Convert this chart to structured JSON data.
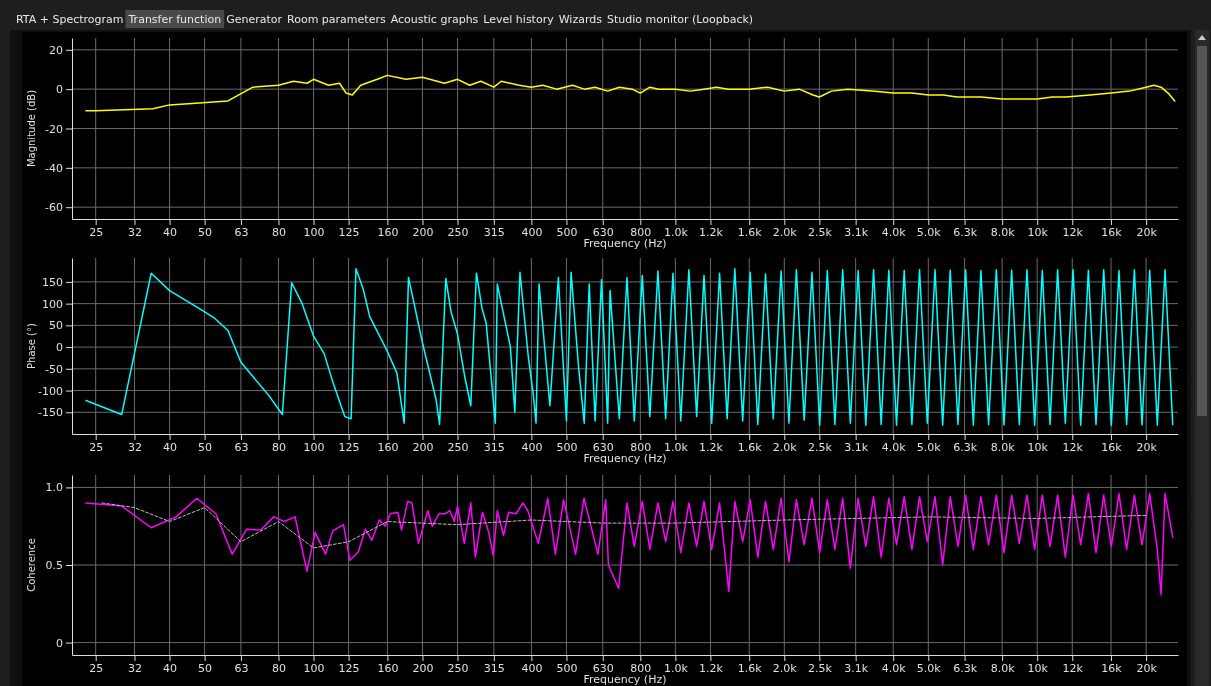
{
  "chart_data": [
    {
      "type": "line",
      "xlabel": "Frequency (Hz)",
      "ylabel": "Magnitude (dB)",
      "log": "x",
      "grid": true,
      "annotations": [
        "RTA + Spectrogram",
        "Transfer function",
        "Generator",
        "Room parameters",
        "Acoustic graphs",
        "Level history",
        "Wizards",
        "Studio monitor (Loopback)"
      ],
      "xlim": [
        21.5,
        24500
      ],
      "ylim": [
        -66,
        26
      ],
      "xticks": [
        25,
        32,
        40,
        50,
        63,
        80,
        100,
        125,
        160,
        200,
        250,
        315,
        400,
        500,
        630,
        800,
        {
          "value": 1000,
          "label": "1.0k"
        },
        {
          "value": 1250,
          "label": "1.2k"
        },
        {
          "value": 1600,
          "label": "1.6k"
        },
        {
          "value": 2000,
          "label": "2.0k"
        },
        {
          "value": 2500,
          "label": "2.5k"
        },
        {
          "value": 3150,
          "label": "3.1k"
        },
        {
          "value": 4000,
          "label": "4.0k"
        },
        {
          "value": 5000,
          "label": "5.0k"
        },
        {
          "value": 6300,
          "label": "6.3k"
        },
        {
          "value": 8000,
          "label": "8.0k"
        },
        {
          "value": 10000,
          "label": "10k"
        },
        {
          "value": 12500,
          "label": "12k"
        },
        {
          "value": 16000,
          "label": "16k"
        },
        {
          "value": 20000,
          "label": "20k"
        }
      ],
      "yticks": [
        -60,
        -40,
        -20,
        0,
        20
      ],
      "series": [
        {
          "color": "#ffff00",
          "x": [
            23.5,
            25,
            36,
            40,
            44,
            58,
            68,
            80,
            88,
            96,
            100,
            110,
            118,
            123,
            128,
            135,
            150,
            160,
            180,
            200,
            230,
            250,
            270,
            290,
            315,
            330,
            370,
            400,
            430,
            470,
            520,
            560,
            600,
            650,
            700,
            760,
            800,
            850,
            900,
            1000,
            1100,
            1200,
            1300,
            1400,
            1600,
            1800,
            2000,
            2200,
            2400,
            2500,
            2700,
            3000,
            3500,
            4000,
            4500,
            5000,
            5500,
            6000,
            7000,
            8000,
            9000,
            10000,
            11000,
            12000,
            14000,
            16000,
            18000,
            20000,
            21000,
            22000,
            23000,
            24000
          ],
          "values": [
            -11,
            -11,
            -10,
            -8,
            -7.5,
            -6,
            1,
            2,
            4,
            3,
            5,
            2,
            3,
            -2,
            -3,
            2,
            5,
            7,
            5,
            6,
            3,
            5,
            2,
            4,
            1,
            4,
            2,
            1,
            2,
            0,
            2,
            0,
            1,
            -1,
            1,
            0,
            -2,
            1,
            0,
            0,
            -1,
            0,
            1,
            0,
            0,
            1,
            -1,
            0,
            -3,
            -4,
            -1,
            0,
            -1,
            -2,
            -2,
            -3,
            -3,
            -4,
            -4,
            -5,
            -5,
            -5,
            -4,
            -4,
            -3,
            -2,
            -1,
            1,
            2,
            1,
            -2,
            -6
          ]
        }
      ]
    },
    {
      "type": "line",
      "xlabel": "Frequency (Hz)",
      "ylabel": "Phase (°)",
      "log": "x",
      "grid": true,
      "xlim": [
        21.5,
        24500
      ],
      "ylim": [
        -200,
        205
      ],
      "xticks": [
        25,
        32,
        40,
        50,
        63,
        80,
        100,
        125,
        160,
        200,
        250,
        315,
        400,
        500,
        630,
        800,
        {
          "value": 1000,
          "label": "1.0k"
        },
        {
          "value": 1250,
          "label": "1.2k"
        },
        {
          "value": 1600,
          "label": "1.6k"
        },
        {
          "value": 2000,
          "label": "2.0k"
        },
        {
          "value": 2500,
          "label": "2.5k"
        },
        {
          "value": 3150,
          "label": "3.1k"
        },
        {
          "value": 4000,
          "label": "4.0k"
        },
        {
          "value": 5000,
          "label": "5.0k"
        },
        {
          "value": 6300,
          "label": "6.3k"
        },
        {
          "value": 8000,
          "label": "8.0k"
        },
        {
          "value": 10000,
          "label": "10k"
        },
        {
          "value": 12500,
          "label": "12k"
        },
        {
          "value": 16000,
          "label": "16k"
        },
        {
          "value": 20000,
          "label": "20k"
        }
      ],
      "yticks": [
        -150,
        -100,
        -50,
        0,
        50,
        100,
        150
      ],
      "series": [
        {
          "color": "#00ffff",
          "x": [
            23.5,
            29.5,
            35.6,
            40,
            48,
            53,
            58,
            63,
            75,
            82,
            87,
            93,
            100,
            107,
            113,
            122,
            127,
            131,
            137,
            143,
            160,
            170,
            178,
            183,
            200,
            218,
            223,
            232,
            240,
            250,
            262,
            272,
            282,
            292,
            300,
            318,
            322,
            350,
            360,
            372,
            392,
            405,
            412,
            420,
            450,
            475,
            500,
            515,
            540,
            560,
            578,
            600,
            625,
            650,
            660,
            700,
            735,
            770,
            810,
            850,
            895,
            940,
            985,
            1035,
            1090,
            1145,
            1200,
            1260,
            1325,
            1390,
            1460,
            1535,
            1610,
            1690,
            1775,
            1865,
            1960,
            2060,
            2160,
            2270,
            2385,
            2505,
            2630,
            2760,
            2900,
            3045,
            3200,
            3360,
            3530,
            3705,
            3890,
            4085,
            4290,
            4505,
            4730,
            4970,
            5220,
            5480,
            5750,
            6040,
            6340,
            6660,
            6990,
            7340,
            7710,
            8095,
            8500,
            8925,
            9370,
            9840,
            10330,
            10850,
            11390,
            11960,
            12560,
            13190,
            13850,
            14540,
            15270,
            16030,
            16830,
            17670,
            18560,
            19490,
            20460,
            21480,
            22560,
            23690
          ],
          "values": [
            -123,
            -155,
            170,
            130,
            90,
            68,
            38,
            -35,
            -110,
            -155,
            148,
            100,
            25,
            -15,
            -80,
            -160,
            -165,
            180,
            135,
            70,
            -10,
            -60,
            -175,
            160,
            10,
            -120,
            -178,
            158,
            80,
            30,
            -70,
            -135,
            170,
            90,
            55,
            -175,
            145,
            0,
            -150,
            172,
            -20,
            -110,
            -175,
            145,
            -135,
            160,
            -170,
            172,
            -45,
            -175,
            145,
            -170,
            155,
            -175,
            130,
            -165,
            160,
            -170,
            165,
            -160,
            175,
            -165,
            170,
            -170,
            178,
            -160,
            165,
            -175,
            170,
            -165,
            180,
            -170,
            172,
            -178,
            168,
            -165,
            175,
            -175,
            178,
            -168,
            172,
            -180,
            176,
            -178,
            178,
            -175,
            176,
            -180,
            178,
            -178,
            177,
            -180,
            176,
            -178,
            178,
            -175,
            178,
            -180,
            177,
            -178,
            178,
            -180,
            176,
            -178,
            178,
            -179,
            177,
            -178,
            178,
            -180,
            176,
            -178,
            178,
            -175,
            178,
            -180,
            177,
            -178,
            178,
            -180,
            176,
            -178,
            178,
            -179,
            177,
            -180,
            178,
            -178
          ]
        }
      ]
    },
    {
      "type": "line",
      "xlabel": "Frequency (Hz)",
      "ylabel": "Coherence",
      "log": "x",
      "grid": true,
      "xlim": [
        21.5,
        24500
      ],
      "ylim": [
        -0.08,
        1.08
      ],
      "xticks": [
        25,
        32,
        40,
        50,
        63,
        80,
        100,
        125,
        160,
        200,
        250,
        315,
        400,
        500,
        630,
        800,
        {
          "value": 1000,
          "label": "1.0k"
        },
        {
          "value": 1250,
          "label": "1.2k"
        },
        {
          "value": 1600,
          "label": "1.6k"
        },
        {
          "value": 2000,
          "label": "2.0k"
        },
        {
          "value": 2500,
          "label": "2.5k"
        },
        {
          "value": 3150,
          "label": "3.1k"
        },
        {
          "value": 4000,
          "label": "4.0k"
        },
        {
          "value": 5000,
          "label": "5.0k"
        },
        {
          "value": 6300,
          "label": "6.3k"
        },
        {
          "value": 8000,
          "label": "8.0k"
        },
        {
          "value": 10000,
          "label": "10k"
        },
        {
          "value": 12500,
          "label": "12k"
        },
        {
          "value": 16000,
          "label": "16k"
        },
        {
          "value": 20000,
          "label": "20k"
        }
      ],
      "yticks": [
        0,
        0.5,
        {
          "value": 1,
          "label": "1.0"
        }
      ],
      "series": [
        {
          "color": "#ff00ff",
          "x": [
            23.5,
            29.5,
            35.6,
            41.7,
            47.6,
            53.7,
            59.6,
            65.3,
            71.5,
            77.6,
            83,
            88.9,
            95.9,
            101,
            108,
            113,
            121,
            126,
            133,
            139,
            145,
            152,
            158,
            163,
            171,
            175,
            182,
            187,
            195,
            207,
            213,
            222,
            231,
            238,
            245,
            250,
            261,
            272,
            280,
            293,
            305,
            314,
            322,
            335,
            346,
            363,
            379,
            391,
            418,
            444,
            466,
            491,
            530,
            559,
            611,
            642,
            653,
            697,
            735,
            770,
            810,
            850,
            895,
            940,
            985,
            1035,
            1090,
            1145,
            1200,
            1260,
            1325,
            1405,
            1460,
            1535,
            1610,
            1690,
            1775,
            1865,
            1960,
            2060,
            2160,
            2270,
            2385,
            2505,
            2630,
            2760,
            2900,
            3045,
            3200,
            3360,
            3530,
            3705,
            3890,
            4085,
            4290,
            4505,
            4730,
            4970,
            5220,
            5480,
            5750,
            6040,
            6340,
            6660,
            6990,
            7340,
            7710,
            8095,
            8500,
            8925,
            9370,
            9840,
            10330,
            10850,
            11390,
            11960,
            12560,
            13190,
            13850,
            14540,
            15270,
            16030,
            16830,
            17670,
            18560,
            19490,
            20460,
            21480,
            22000,
            22560,
            23690
          ],
          "values": [
            0.9,
            0.88,
            0.74,
            0.81,
            0.93,
            0.83,
            0.57,
            0.73,
            0.725,
            0.81,
            0.78,
            0.81,
            0.46,
            0.71,
            0.57,
            0.72,
            0.76,
            0.53,
            0.585,
            0.73,
            0.66,
            0.79,
            0.75,
            0.83,
            0.84,
            0.725,
            0.91,
            0.9,
            0.64,
            0.85,
            0.75,
            0.83,
            0.83,
            0.85,
            0.78,
            0.88,
            0.64,
            0.9,
            0.55,
            0.84,
            0.71,
            0.56,
            0.85,
            0.69,
            0.84,
            0.83,
            0.9,
            0.85,
            0.64,
            0.93,
            0.57,
            0.92,
            0.57,
            0.93,
            0.57,
            0.92,
            0.5,
            0.35,
            0.9,
            0.62,
            0.91,
            0.6,
            0.9,
            0.65,
            0.91,
            0.58,
            0.9,
            0.62,
            0.91,
            0.6,
            0.9,
            0.33,
            0.91,
            0.65,
            0.92,
            0.55,
            0.91,
            0.6,
            0.93,
            0.52,
            0.92,
            0.63,
            0.93,
            0.58,
            0.92,
            0.6,
            0.93,
            0.48,
            0.93,
            0.62,
            0.94,
            0.55,
            0.93,
            0.63,
            0.94,
            0.6,
            0.94,
            0.65,
            0.94,
            0.5,
            0.94,
            0.62,
            0.95,
            0.6,
            0.94,
            0.63,
            0.95,
            0.58,
            0.95,
            0.64,
            0.95,
            0.6,
            0.95,
            0.62,
            0.95,
            0.55,
            0.95,
            0.63,
            0.96,
            0.58,
            0.95,
            0.62,
            0.96,
            0.6,
            0.95,
            0.63,
            0.96,
            0.6,
            0.31,
            0.96,
            0.68
          ]
        },
        {
          "color": "#bbbbbb",
          "line_style": "dashed",
          "x": [
            26,
            32,
            40,
            50,
            63,
            80,
            100,
            125,
            160,
            250,
            400,
            630,
            1000,
            2000,
            5000,
            10000,
            20000
          ],
          "values": [
            0.9,
            0.87,
            0.78,
            0.87,
            0.65,
            0.78,
            0.61,
            0.65,
            0.78,
            0.76,
            0.79,
            0.77,
            0.77,
            0.79,
            0.81,
            0.8,
            0.82
          ]
        }
      ]
    }
  ]
}
